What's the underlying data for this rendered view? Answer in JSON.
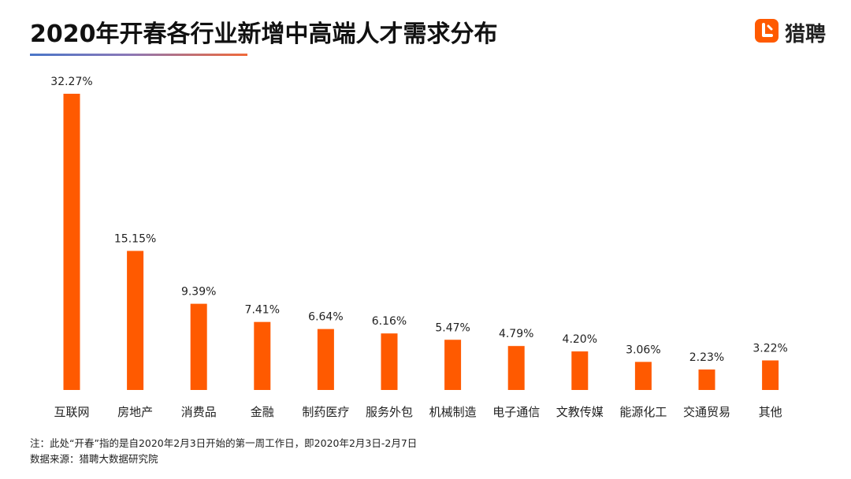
{
  "header": {
    "title": "2020年开春各行业新增中高端人才需求分布",
    "logo_text": "猎聘",
    "logo_icon": "liepin-logo-icon",
    "accent_color": "#ff5a00"
  },
  "chart_data": {
    "type": "bar",
    "title": "2020年开春各行业新增中高端人才需求分布",
    "categories": [
      "互联网",
      "房地产",
      "消费品",
      "金融",
      "制药医疗",
      "服务外包",
      "机械制造",
      "电子通信",
      "文教传媒",
      "能源化工",
      "交通贸易",
      "其他"
    ],
    "values": [
      32.27,
      15.15,
      9.39,
      7.41,
      6.64,
      6.16,
      5.47,
      4.79,
      4.2,
      3.06,
      2.23,
      3.22
    ],
    "value_labels": [
      "32.27%",
      "15.15%",
      "9.39%",
      "7.41%",
      "6.64%",
      "6.16%",
      "5.47%",
      "4.79%",
      "4.20%",
      "3.06%",
      "2.23%",
      "3.22%"
    ],
    "ylim": [
      0,
      32.27
    ],
    "bar_color": "#ff5a00",
    "grid": false,
    "legend": "none"
  },
  "footnotes": {
    "note": "注：此处“开春”指的是自2020年2月3日开始的第一周工作日，即2020年2月3日-2月7日",
    "source": "数据来源：猎聘大数据研究院"
  }
}
